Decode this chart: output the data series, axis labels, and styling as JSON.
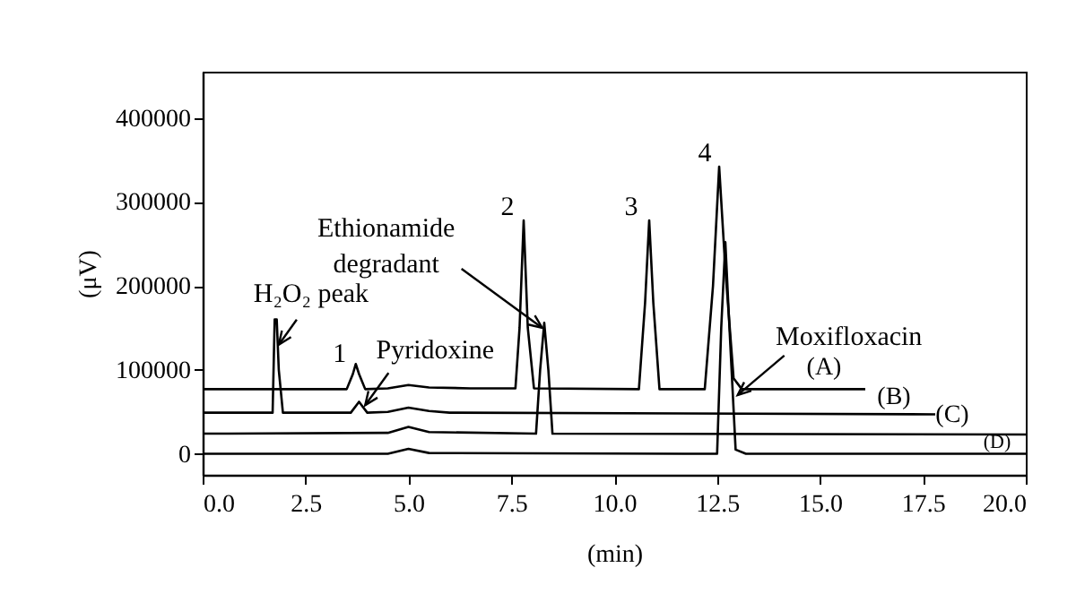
{
  "chart_data": {
    "type": "line",
    "xlabel": "(min)",
    "ylabel": "(μV)",
    "xlim": [
      0,
      20
    ],
    "ylim": [
      -25000,
      455000
    ],
    "xticks": [
      {
        "value": 0,
        "label": "0.0"
      },
      {
        "value": 2.5,
        "label": "2.5"
      },
      {
        "value": 5,
        "label": "5.0"
      },
      {
        "value": 7.5,
        "label": "7.5"
      },
      {
        "value": 10,
        "label": "10.0"
      },
      {
        "value": 12.5,
        "label": "12.5"
      },
      {
        "value": 15,
        "label": "15.0"
      },
      {
        "value": 17.5,
        "label": "17.5"
      },
      {
        "value": 20,
        "label": "20.0"
      }
    ],
    "yticks": [
      0,
      100000,
      200000,
      300000,
      400000
    ],
    "grid": false,
    "marker": "none",
    "line_style": "solid",
    "series": [
      {
        "name": "(A)",
        "color": "#000000",
        "x": [
          0,
          3.5,
          3.65,
          3.72,
          3.8,
          3.95,
          4.5,
          5.0,
          5.5,
          6.5,
          7.6,
          7.7,
          7.8,
          7.9,
          8.05,
          10.6,
          10.75,
          10.85,
          10.95,
          11.1,
          12.2,
          12.4,
          12.55,
          12.7,
          12.9,
          13.1,
          16.1
        ],
        "values": [
          77000,
          77000,
          95000,
          107000,
          95000,
          77000,
          78000,
          82000,
          79000,
          78000,
          78000,
          150000,
          278000,
          150000,
          78000,
          77000,
          180000,
          278000,
          180000,
          77000,
          77000,
          200000,
          342000,
          220000,
          90000,
          77000,
          77000
        ]
      },
      {
        "name": "(B)",
        "color": "#000000",
        "x": [
          0,
          1.7,
          1.75,
          1.8,
          1.85,
          1.95,
          3.6,
          3.8,
          4.0,
          4.5,
          5.0,
          5.5,
          6.0,
          17.8
        ],
        "values": [
          49000,
          49000,
          160000,
          160000,
          100000,
          49000,
          49000,
          62000,
          49000,
          50000,
          55000,
          51000,
          49000,
          47000
        ]
      },
      {
        "name": "(C)",
        "color": "#000000",
        "x": [
          0,
          4.5,
          5.0,
          5.5,
          8.1,
          8.2,
          8.3,
          8.4,
          8.5,
          20
        ],
        "values": [
          24000,
          25000,
          32000,
          26000,
          24000,
          100000,
          156000,
          100000,
          24000,
          23000
        ]
      },
      {
        "name": "(D)",
        "color": "#000000",
        "x": [
          0,
          4.5,
          5.0,
          5.5,
          12.5,
          12.6,
          12.7,
          12.8,
          12.95,
          13.2,
          20
        ],
        "values": [
          0,
          0,
          6000,
          1000,
          0,
          150000,
          252000,
          150000,
          5000,
          0,
          0
        ]
      }
    ],
    "annotations": [
      {
        "text": "H₂O₂ peak",
        "x": 1.85,
        "y": 130000
      },
      {
        "text": "1",
        "x": 3.72,
        "y": 107000
      },
      {
        "text": "Pyridoxine",
        "x": 3.95,
        "y": 58000
      },
      {
        "text": "Ethionamide degradant",
        "x": 8.25,
        "y": 150000
      },
      {
        "text": "2",
        "x": 7.8,
        "y": 278000
      },
      {
        "text": "3",
        "x": 10.85,
        "y": 278000
      },
      {
        "text": "4",
        "x": 12.55,
        "y": 342000
      },
      {
        "text": "Moxifloxacin",
        "x": 13.0,
        "y": 70000
      }
    ]
  }
}
